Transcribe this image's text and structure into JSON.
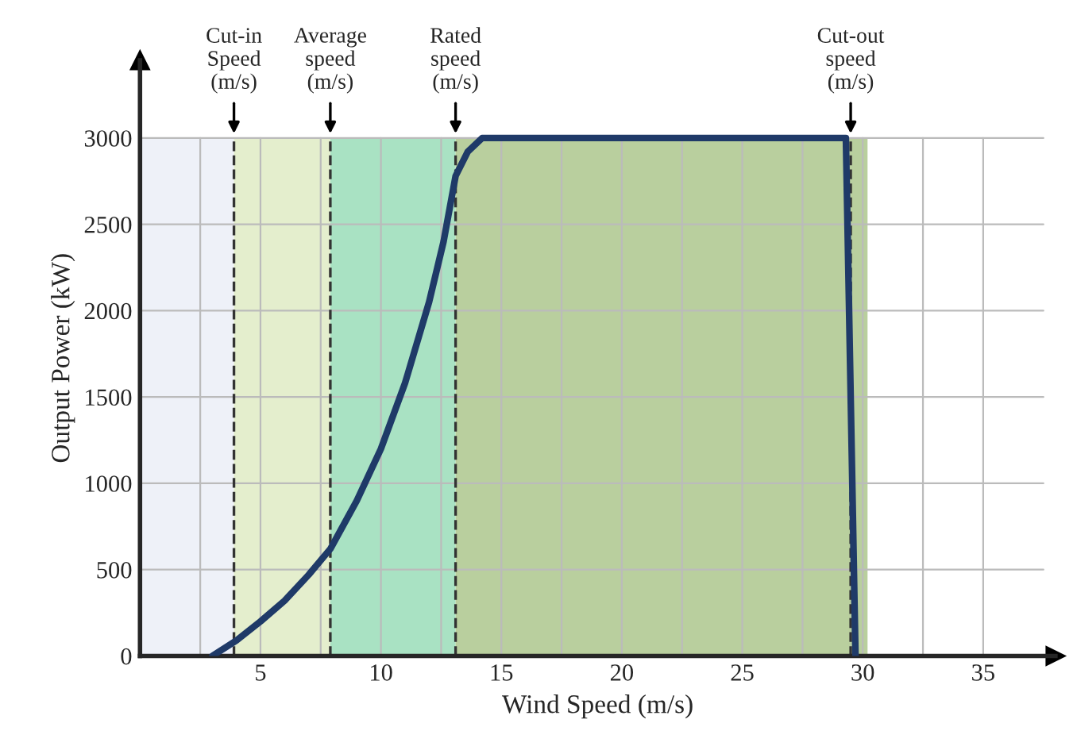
{
  "chart_data": {
    "type": "line",
    "xlabel": "Wind Speed (m/s)",
    "ylabel": "Output Power (kW)",
    "x": [
      3,
      4,
      5,
      6,
      7,
      7.9,
      9,
      10,
      11,
      12,
      12.6,
      13.1,
      13.6,
      14.2,
      15,
      20,
      25,
      29.3,
      29.5,
      29.7
    ],
    "series": [
      {
        "color": "#1f3a68",
        "values": [
          0,
          90,
          200,
          320,
          470,
          620,
          900,
          1200,
          1580,
          2050,
          2400,
          2780,
          2920,
          3000,
          3000,
          3000,
          3000,
          3000,
          1500,
          0
        ]
      }
    ],
    "xlim": [
      0,
      38
    ],
    "ylim": [
      0,
      3450
    ],
    "xticks": [
      {
        "value": 2.5,
        "label": null
      },
      5,
      {
        "value": 7.5,
        "label": null
      },
      10,
      {
        "value": 12.5,
        "label": null
      },
      15,
      {
        "value": 17.5,
        "label": null
      },
      20,
      {
        "value": 22.5,
        "label": null
      },
      25,
      {
        "value": 27.5,
        "label": null
      },
      30,
      {
        "value": 32.5,
        "label": null
      },
      35
    ],
    "yticks": [
      0,
      500,
      1000,
      1500,
      2000,
      2500,
      3000
    ],
    "grid": true,
    "marker": "none",
    "line_style": "solid",
    "bands": [
      {
        "axis": "x",
        "from": 0,
        "to": 3.9,
        "color": "#eef1f8"
      },
      {
        "axis": "x",
        "from": 3.9,
        "to": 7.9,
        "color": "#e4eecd"
      },
      {
        "axis": "x",
        "from": 7.9,
        "to": 13.1,
        "color": "#a9e2c3"
      },
      {
        "axis": "x",
        "from": 13.1,
        "to": 30.2,
        "color": "#b9cf9e"
      }
    ],
    "ref_lines": [
      {
        "axis": "x",
        "value": 3.9,
        "label": "Cut-in\nSpeed\n(m/s)",
        "line_style": "dashed"
      },
      {
        "axis": "x",
        "value": 7.9,
        "label": "Average\nspeed\n(m/s)",
        "line_style": "dashed"
      },
      {
        "axis": "x",
        "value": 13.1,
        "label": "Rated\nspeed\n(m/s)",
        "line_style": "dashed"
      },
      {
        "axis": "x",
        "value": 29.5,
        "label": "Cut-out\nspeed\n(m/s)",
        "line_style": "dashed"
      }
    ]
  }
}
